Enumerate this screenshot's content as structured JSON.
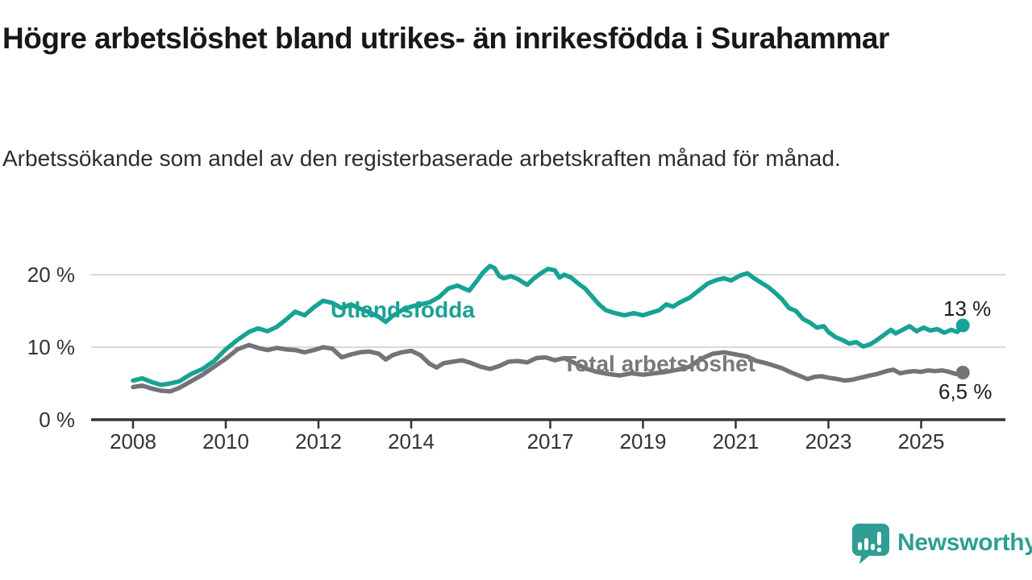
{
  "header": {
    "title": "Högre arbetslöshet bland utrikes- än inrikesfödda i Surahammar",
    "subtitle": "Arbetssökande som andel av den registerbaserade arbetskraften månad för månad."
  },
  "colors": {
    "teal_line": "#17a294",
    "teal_label": "#17a294",
    "gray_line": "#737477",
    "gray_label": "#78797c",
    "axis": "#333333",
    "gridline": "#d9d9d9",
    "tick_text": "#333333",
    "logo": "#2f9e93"
  },
  "chart_data": {
    "type": "line",
    "title": "Högre arbetslöshet bland utrikes- än inrikesfödda i Surahammar",
    "subtitle": "Arbetssökande som andel av den registerbaserade arbetskraften månad för månad.",
    "xlabel": "",
    "ylabel": "",
    "xlim": [
      2007.1,
      2026.8
    ],
    "ylim": [
      0,
      23
    ],
    "grid": "horizontal",
    "legend_position": "inline-labels",
    "x_ticks": [
      2008,
      2010,
      2012,
      2014,
      2017,
      2019,
      2021,
      2023,
      2025
    ],
    "x_tick_labels": [
      "2008",
      "2010",
      "2012",
      "2014",
      "2017",
      "2019",
      "2021",
      "2023",
      "2025"
    ],
    "y_ticks": [
      0,
      10,
      20
    ],
    "y_tick_labels": [
      "0 %",
      "10 %",
      "20 %"
    ],
    "series": [
      {
        "name": "Total arbetslöshet",
        "color": "#737477",
        "end_label": "6,5 %",
        "end_value": 6.5,
        "points": [
          [
            2008.0,
            4.5
          ],
          [
            2008.2,
            4.7
          ],
          [
            2008.4,
            4.3
          ],
          [
            2008.6,
            4.0
          ],
          [
            2008.8,
            3.9
          ],
          [
            2009.0,
            4.4
          ],
          [
            2009.25,
            5.3
          ],
          [
            2009.5,
            6.2
          ],
          [
            2009.75,
            7.3
          ],
          [
            2010.0,
            8.4
          ],
          [
            2010.25,
            9.7
          ],
          [
            2010.5,
            10.3
          ],
          [
            2010.7,
            9.9
          ],
          [
            2010.9,
            9.6
          ],
          [
            2011.1,
            9.9
          ],
          [
            2011.3,
            9.7
          ],
          [
            2011.5,
            9.6
          ],
          [
            2011.7,
            9.3
          ],
          [
            2011.9,
            9.6
          ],
          [
            2012.1,
            10.0
          ],
          [
            2012.3,
            9.8
          ],
          [
            2012.5,
            8.6
          ],
          [
            2012.7,
            9.0
          ],
          [
            2012.9,
            9.3
          ],
          [
            2013.1,
            9.4
          ],
          [
            2013.3,
            9.1
          ],
          [
            2013.45,
            8.3
          ],
          [
            2013.6,
            8.9
          ],
          [
            2013.8,
            9.3
          ],
          [
            2014.0,
            9.5
          ],
          [
            2014.2,
            8.9
          ],
          [
            2014.4,
            7.7
          ],
          [
            2014.55,
            7.2
          ],
          [
            2014.7,
            7.8
          ],
          [
            2014.9,
            8.0
          ],
          [
            2015.1,
            8.2
          ],
          [
            2015.3,
            7.8
          ],
          [
            2015.5,
            7.3
          ],
          [
            2015.7,
            7.0
          ],
          [
            2015.9,
            7.4
          ],
          [
            2016.1,
            8.0
          ],
          [
            2016.3,
            8.1
          ],
          [
            2016.5,
            7.9
          ],
          [
            2016.7,
            8.5
          ],
          [
            2016.9,
            8.6
          ],
          [
            2017.1,
            8.2
          ],
          [
            2017.3,
            8.5
          ],
          [
            2017.5,
            7.9
          ],
          [
            2017.75,
            7.1
          ],
          [
            2018.0,
            6.6
          ],
          [
            2018.25,
            6.3
          ],
          [
            2018.5,
            6.1
          ],
          [
            2018.75,
            6.4
          ],
          [
            2019.0,
            6.2
          ],
          [
            2019.25,
            6.4
          ],
          [
            2019.5,
            6.6
          ],
          [
            2019.75,
            6.9
          ],
          [
            2020.0,
            7.3
          ],
          [
            2020.25,
            8.4
          ],
          [
            2020.5,
            9.1
          ],
          [
            2020.75,
            9.3
          ],
          [
            2021.0,
            9.0
          ],
          [
            2021.25,
            8.7
          ],
          [
            2021.45,
            8.1
          ],
          [
            2021.65,
            7.8
          ],
          [
            2021.85,
            7.4
          ],
          [
            2022.0,
            7.1
          ],
          [
            2022.2,
            6.5
          ],
          [
            2022.4,
            6.0
          ],
          [
            2022.55,
            5.6
          ],
          [
            2022.7,
            5.9
          ],
          [
            2022.85,
            6.0
          ],
          [
            2023.0,
            5.8
          ],
          [
            2023.2,
            5.6
          ],
          [
            2023.35,
            5.4
          ],
          [
            2023.5,
            5.5
          ],
          [
            2023.7,
            5.8
          ],
          [
            2023.9,
            6.1
          ],
          [
            2024.05,
            6.3
          ],
          [
            2024.25,
            6.7
          ],
          [
            2024.4,
            6.9
          ],
          [
            2024.55,
            6.4
          ],
          [
            2024.7,
            6.6
          ],
          [
            2024.85,
            6.7
          ],
          [
            2025.0,
            6.6
          ],
          [
            2025.15,
            6.8
          ],
          [
            2025.3,
            6.7
          ],
          [
            2025.45,
            6.8
          ],
          [
            2025.6,
            6.6
          ],
          [
            2025.75,
            6.3
          ],
          [
            2025.9,
            6.5
          ]
        ]
      },
      {
        "name": "Utlandsfödda",
        "color": "#17a294",
        "end_label": "13 %",
        "end_value": 13,
        "points": [
          [
            2008.0,
            5.4
          ],
          [
            2008.2,
            5.7
          ],
          [
            2008.4,
            5.2
          ],
          [
            2008.6,
            4.8
          ],
          [
            2008.8,
            5.0
          ],
          [
            2009.0,
            5.3
          ],
          [
            2009.25,
            6.3
          ],
          [
            2009.5,
            7.0
          ],
          [
            2009.75,
            8.1
          ],
          [
            2010.0,
            9.7
          ],
          [
            2010.25,
            11.0
          ],
          [
            2010.5,
            12.1
          ],
          [
            2010.7,
            12.6
          ],
          [
            2010.9,
            12.2
          ],
          [
            2011.1,
            12.8
          ],
          [
            2011.3,
            13.8
          ],
          [
            2011.5,
            14.9
          ],
          [
            2011.7,
            14.4
          ],
          [
            2011.9,
            15.5
          ],
          [
            2012.1,
            16.4
          ],
          [
            2012.3,
            16.1
          ],
          [
            2012.5,
            15.4
          ],
          [
            2012.7,
            15.9
          ],
          [
            2012.9,
            15.3
          ],
          [
            2013.1,
            14.8
          ],
          [
            2013.3,
            14.2
          ],
          [
            2013.45,
            13.5
          ],
          [
            2013.6,
            14.3
          ],
          [
            2013.8,
            15.1
          ],
          [
            2014.0,
            15.6
          ],
          [
            2014.2,
            15.9
          ],
          [
            2014.4,
            16.2
          ],
          [
            2014.6,
            16.9
          ],
          [
            2014.8,
            18.1
          ],
          [
            2015.0,
            18.5
          ],
          [
            2015.1,
            18.2
          ],
          [
            2015.25,
            17.8
          ],
          [
            2015.4,
            19.0
          ],
          [
            2015.55,
            20.3
          ],
          [
            2015.7,
            21.2
          ],
          [
            2015.8,
            20.9
          ],
          [
            2015.9,
            19.8
          ],
          [
            2016.0,
            19.5
          ],
          [
            2016.15,
            19.8
          ],
          [
            2016.3,
            19.4
          ],
          [
            2016.5,
            18.6
          ],
          [
            2016.65,
            19.5
          ],
          [
            2016.8,
            20.2
          ],
          [
            2016.95,
            20.8
          ],
          [
            2017.1,
            20.6
          ],
          [
            2017.2,
            19.6
          ],
          [
            2017.3,
            20.0
          ],
          [
            2017.45,
            19.6
          ],
          [
            2017.6,
            18.8
          ],
          [
            2017.75,
            18.1
          ],
          [
            2017.9,
            17.0
          ],
          [
            2018.05,
            15.9
          ],
          [
            2018.2,
            15.1
          ],
          [
            2018.4,
            14.7
          ],
          [
            2018.6,
            14.4
          ],
          [
            2018.8,
            14.7
          ],
          [
            2019.0,
            14.4
          ],
          [
            2019.2,
            14.8
          ],
          [
            2019.35,
            15.1
          ],
          [
            2019.5,
            15.9
          ],
          [
            2019.65,
            15.6
          ],
          [
            2019.8,
            16.2
          ],
          [
            2020.0,
            16.8
          ],
          [
            2020.2,
            17.8
          ],
          [
            2020.4,
            18.8
          ],
          [
            2020.6,
            19.3
          ],
          [
            2020.75,
            19.5
          ],
          [
            2020.9,
            19.2
          ],
          [
            2021.1,
            19.9
          ],
          [
            2021.25,
            20.2
          ],
          [
            2021.4,
            19.5
          ],
          [
            2021.55,
            18.9
          ],
          [
            2021.7,
            18.3
          ],
          [
            2021.85,
            17.5
          ],
          [
            2022.0,
            16.6
          ],
          [
            2022.15,
            15.4
          ],
          [
            2022.3,
            15.0
          ],
          [
            2022.45,
            13.9
          ],
          [
            2022.6,
            13.4
          ],
          [
            2022.75,
            12.7
          ],
          [
            2022.9,
            12.9
          ],
          [
            2023.0,
            12.1
          ],
          [
            2023.15,
            11.4
          ],
          [
            2023.3,
            11.0
          ],
          [
            2023.45,
            10.5
          ],
          [
            2023.6,
            10.7
          ],
          [
            2023.75,
            10.1
          ],
          [
            2023.9,
            10.4
          ],
          [
            2024.05,
            11.0
          ],
          [
            2024.2,
            11.7
          ],
          [
            2024.35,
            12.4
          ],
          [
            2024.45,
            11.9
          ],
          [
            2024.6,
            12.4
          ],
          [
            2024.75,
            12.9
          ],
          [
            2024.9,
            12.2
          ],
          [
            2025.05,
            12.7
          ],
          [
            2025.2,
            12.3
          ],
          [
            2025.35,
            12.5
          ],
          [
            2025.5,
            12.0
          ],
          [
            2025.65,
            12.4
          ],
          [
            2025.78,
            12.1
          ],
          [
            2025.9,
            13.0
          ]
        ]
      }
    ]
  },
  "branding": {
    "logo_text": "Newsworthy",
    "logo_icon": "speech-bubble-bar-chart-icon"
  }
}
